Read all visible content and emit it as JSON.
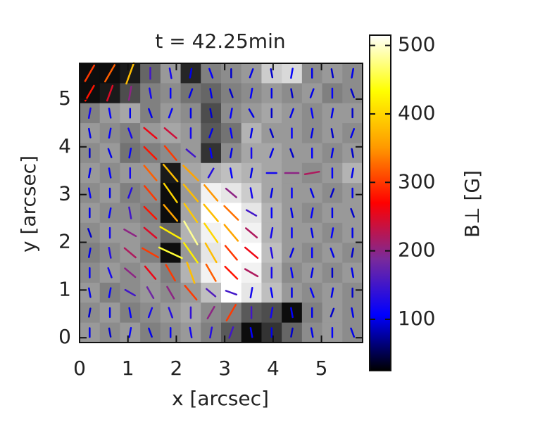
{
  "chart_data": {
    "type": "vector-heatmap",
    "title": "t = 42.25min",
    "xlabel": "x [arcsec]",
    "ylabel": "y [arcsec]",
    "colorbar_label": "B⊥ [G]",
    "xlim": [
      0,
      5.85
    ],
    "ylim": [
      -0.1,
      5.75
    ],
    "xticks": [
      0,
      1,
      2,
      3,
      4,
      5
    ],
    "yticks": [
      0,
      1,
      2,
      3,
      4,
      5
    ],
    "clim": [
      25,
      515
    ],
    "cticks": [
      100,
      200,
      300,
      400,
      500
    ],
    "colormap": [
      "#000000",
      "#0000ff",
      "#7a2a9a",
      "#ff0000",
      "#ff9a00",
      "#ffff00",
      "#ffffff"
    ],
    "z": [
      [
        0.05,
        0.05,
        0.1,
        0.4,
        0.6,
        0.15,
        0.5,
        0.55,
        0.6,
        0.8,
        0.85,
        0.55,
        0.6,
        0.55
      ],
      [
        0.05,
        0.1,
        0.3,
        0.5,
        0.55,
        0.45,
        0.4,
        0.5,
        0.55,
        0.6,
        0.55,
        0.6,
        0.5,
        0.55
      ],
      [
        0.5,
        0.6,
        0.65,
        0.5,
        0.6,
        0.55,
        0.3,
        0.55,
        0.6,
        0.65,
        0.6,
        0.55,
        0.6,
        0.6
      ],
      [
        0.6,
        0.55,
        0.5,
        0.6,
        0.65,
        0.6,
        0.35,
        0.45,
        0.7,
        0.6,
        0.6,
        0.55,
        0.6,
        0.55
      ],
      [
        0.55,
        0.6,
        0.45,
        0.5,
        0.55,
        0.6,
        0.2,
        0.55,
        0.65,
        0.65,
        0.6,
        0.6,
        0.55,
        0.6
      ],
      [
        0.6,
        0.55,
        0.6,
        0.6,
        0.1,
        0.65,
        0.7,
        0.75,
        0.7,
        0.65,
        0.6,
        0.55,
        0.6,
        0.7
      ],
      [
        0.55,
        0.6,
        0.5,
        0.55,
        0.05,
        0.6,
        0.95,
        0.9,
        0.8,
        0.65,
        0.6,
        0.6,
        0.55,
        0.6
      ],
      [
        0.6,
        0.55,
        0.55,
        0.5,
        0.05,
        0.65,
        1.0,
        1.0,
        0.9,
        0.7,
        0.6,
        0.55,
        0.6,
        0.6
      ],
      [
        0.55,
        0.6,
        0.6,
        0.55,
        0.4,
        0.7,
        0.95,
        1.0,
        0.95,
        0.7,
        0.6,
        0.6,
        0.55,
        0.6
      ],
      [
        0.5,
        0.55,
        0.6,
        0.5,
        0.05,
        0.6,
        0.9,
        1.0,
        1.0,
        0.75,
        0.6,
        0.55,
        0.6,
        0.55
      ],
      [
        0.55,
        0.6,
        0.55,
        0.6,
        0.5,
        0.7,
        0.95,
        1.0,
        0.95,
        0.7,
        0.55,
        0.6,
        0.55,
        0.6
      ],
      [
        0.6,
        0.5,
        0.55,
        0.6,
        0.55,
        0.6,
        0.75,
        1.0,
        0.9,
        0.75,
        0.6,
        0.55,
        0.6,
        0.55
      ],
      [
        0.55,
        0.6,
        0.5,
        0.55,
        0.6,
        0.65,
        0.55,
        0.5,
        0.35,
        0.3,
        0.05,
        0.5,
        0.6,
        0.55
      ],
      [
        0.6,
        0.55,
        0.6,
        0.5,
        0.55,
        0.6,
        0.5,
        0.35,
        0.05,
        0.2,
        0.4,
        0.55,
        0.6,
        0.55
      ]
    ],
    "b": [
      [
        300,
        320,
        380,
        150,
        120,
        100,
        110,
        90,
        100,
        90,
        110,
        100,
        90,
        100
      ],
      [
        280,
        250,
        200,
        120,
        110,
        100,
        100,
        90,
        110,
        100,
        90,
        100,
        110,
        90
      ],
      [
        120,
        110,
        100,
        100,
        110,
        100,
        90,
        110,
        100,
        90,
        100,
        110,
        100,
        90
      ],
      [
        100,
        110,
        120,
        260,
        240,
        120,
        100,
        110,
        100,
        90,
        110,
        100,
        90,
        100
      ],
      [
        90,
        100,
        110,
        280,
        300,
        150,
        110,
        100,
        120,
        100,
        90,
        110,
        100,
        90
      ],
      [
        100,
        110,
        120,
        320,
        380,
        360,
        130,
        110,
        100,
        120,
        200,
        220,
        110,
        100
      ],
      [
        110,
        100,
        130,
        300,
        400,
        380,
        350,
        200,
        120,
        100,
        110,
        100,
        90,
        100
      ],
      [
        100,
        110,
        150,
        280,
        360,
        390,
        380,
        330,
        150,
        110,
        100,
        110,
        100,
        90
      ],
      [
        90,
        120,
        200,
        250,
        420,
        480,
        400,
        360,
        220,
        120,
        110,
        100,
        110,
        100
      ],
      [
        100,
        130,
        220,
        300,
        450,
        420,
        380,
        300,
        260,
        130,
        100,
        110,
        100,
        90
      ],
      [
        110,
        120,
        200,
        260,
        300,
        380,
        320,
        280,
        220,
        120,
        110,
        100,
        90,
        100
      ],
      [
        100,
        110,
        150,
        180,
        200,
        300,
        160,
        150,
        120,
        110,
        100,
        110,
        100,
        90
      ],
      [
        90,
        100,
        110,
        120,
        130,
        140,
        200,
        300,
        150,
        120,
        110,
        100,
        90,
        100
      ],
      [
        100,
        90,
        110,
        100,
        110,
        120,
        130,
        150,
        110,
        100,
        90,
        100,
        110,
        100
      ]
    ],
    "angle": [
      [
        60,
        60,
        70,
        90,
        100,
        80,
        110,
        90,
        70,
        100,
        80,
        90,
        100,
        80
      ],
      [
        60,
        70,
        80,
        100,
        90,
        70,
        100,
        110,
        80,
        90,
        100,
        70,
        90,
        110
      ],
      [
        80,
        100,
        90,
        110,
        70,
        90,
        100,
        80,
        120,
        90,
        70,
        100,
        80,
        90
      ],
      [
        100,
        80,
        110,
        -40,
        -40,
        90,
        70,
        100,
        80,
        110,
        90,
        80,
        100,
        70
      ],
      [
        90,
        110,
        80,
        -45,
        -50,
        -40,
        100,
        80,
        90,
        70,
        110,
        90,
        80,
        100
      ],
      [
        80,
        100,
        90,
        -50,
        -50,
        -45,
        60,
        100,
        80,
        0,
        0,
        10,
        90,
        80
      ],
      [
        100,
        90,
        70,
        -50,
        -55,
        -50,
        -50,
        -40,
        100,
        80,
        90,
        110,
        70,
        90
      ],
      [
        90,
        80,
        100,
        -45,
        -50,
        -55,
        -50,
        -45,
        -30,
        90,
        100,
        80,
        90,
        110
      ],
      [
        110,
        90,
        -30,
        -40,
        -30,
        -60,
        -55,
        -50,
        -40,
        80,
        90,
        100,
        80,
        90
      ],
      [
        80,
        100,
        -40,
        -30,
        -25,
        -55,
        -60,
        -50,
        -40,
        100,
        70,
        90,
        110,
        80
      ],
      [
        90,
        110,
        -40,
        -50,
        -60,
        -70,
        -60,
        -45,
        -30,
        90,
        100,
        80,
        90,
        100
      ],
      [
        100,
        80,
        -30,
        -60,
        -60,
        -50,
        -40,
        -20,
        80,
        100,
        90,
        110,
        80,
        90
      ],
      [
        80,
        90,
        100,
        70,
        110,
        90,
        60,
        60,
        90,
        80,
        100,
        90,
        70,
        100
      ],
      [
        90,
        100,
        80,
        110,
        90,
        100,
        80,
        70,
        100,
        90,
        80,
        100,
        90,
        110
      ]
    ]
  }
}
